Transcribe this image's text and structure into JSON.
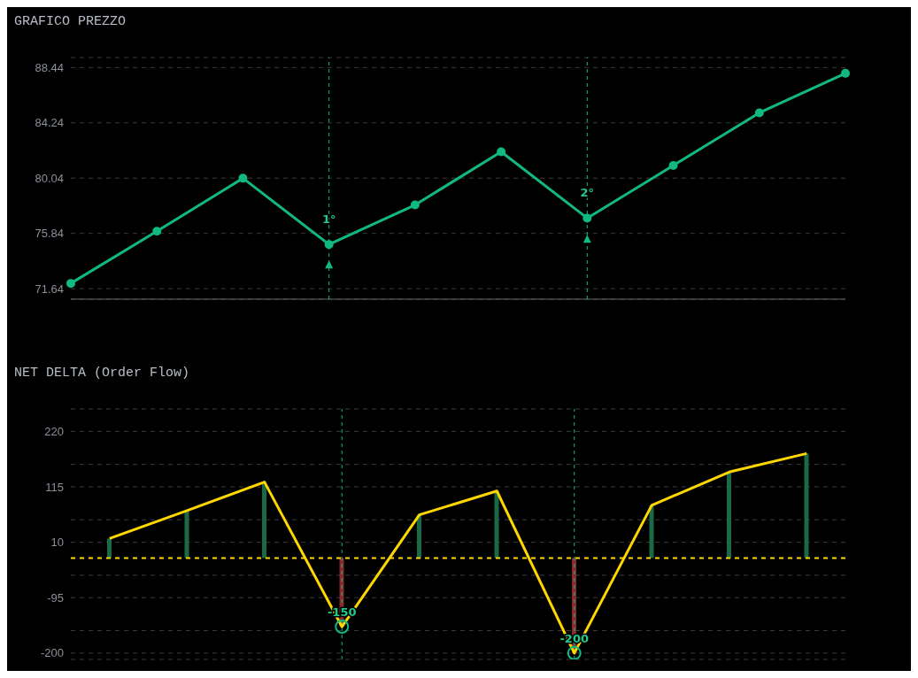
{
  "chart_data": [
    {
      "type": "line",
      "title": "GRAFICO PREZZO",
      "categories": [
        null,
        null,
        null,
        null,
        null,
        null,
        null,
        null,
        null,
        null
      ],
      "tick_labels": "y",
      "ylim": [
        70.84,
        89.2
      ],
      "yticks": [
        71.64,
        75.84,
        80.04,
        84.24,
        88.44
      ],
      "grid": "y",
      "series": [
        {
          "type": "line",
          "color": "#10b981",
          "marker": "circle",
          "values": [
            72.04,
            76.0,
            80.03,
            75.0,
            78.0,
            82.04,
            77.0,
            81.0,
            85.0,
            88.0
          ]
        },
        {
          "type": "scatter",
          "color": "#10b981",
          "marker": "triangle",
          "values": [
            null,
            null,
            null,
            73.45,
            null,
            null,
            75.4,
            null,
            null,
            null
          ]
        }
      ],
      "annotations": [
        "1°",
        "2°"
      ]
    },
    {
      "type": "bar",
      "title": "NET DELTA (Order Flow)",
      "categories": [
        null,
        null,
        null,
        null,
        null,
        null,
        null,
        null,
        null,
        null
      ],
      "tick_labels": "y",
      "ylim": [
        -212,
        262.5
      ],
      "yticks": [
        -200,
        {
          "value": -157.5,
          "label": null
        },
        -95,
        {
          "value": -52.5,
          "label": null
        },
        10,
        {
          "value": 52.5,
          "label": null
        },
        115,
        {
          "value": 157.5,
          "label": null
        },
        220,
        {
          "value": 262.5,
          "label": null
        }
      ],
      "grid": "y",
      "series": [
        {
          "type": "bar",
          "colors": [
            "#1a6b45",
            "#1a6b45",
            "#1a6b45",
            "#8b2a2a",
            "#1a6b45",
            "#1a6b45",
            "#8b2a2a",
            "#1a6b45",
            "#1a6b45",
            "#1a6b45"
          ],
          "base": [
            -20,
            -20,
            -20,
            -20,
            -20,
            -20,
            -20,
            -20,
            -20,
            -20
          ],
          "values": [
            37,
            90,
            144,
            -130,
            82,
            127,
            -180,
            100,
            163,
            198
          ]
        },
        {
          "type": "line",
          "color": "#ffd700",
          "values": [
            17,
            70,
            124,
            -150,
            62,
            107,
            -200,
            80,
            143,
            178
          ]
        },
        {
          "type": "scatter",
          "color": "#10b981",
          "marker": "circle",
          "values": [
            null,
            null,
            null,
            -150,
            null,
            null,
            -200,
            null,
            null,
            null
          ]
        }
      ],
      "ref_lines": [
        {
          "axis": "y",
          "value": -20,
          "color": "#ffd700",
          "line_style": "dashed"
        }
      ],
      "annotations": [
        "-150",
        "-200"
      ]
    }
  ]
}
